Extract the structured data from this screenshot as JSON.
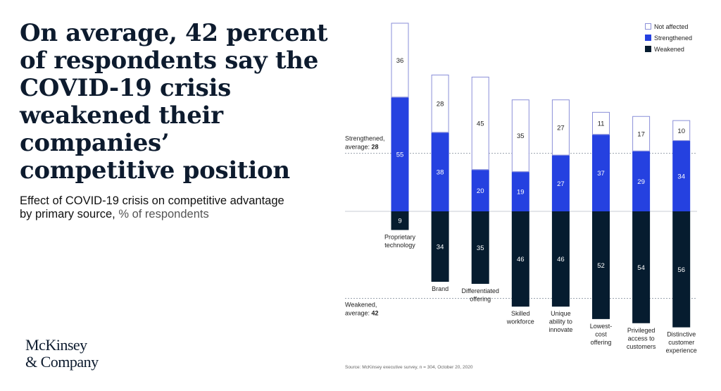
{
  "headline": "On average, 42 percent of respondents say the COVID-19 crisis weakened their companies’ competitive position",
  "subtitle": {
    "main": "Effect of COVID-19 crisis on competitive advantage by primary source,",
    "unit": "% of respondents"
  },
  "brand": {
    "line1": "McKinsey",
    "line2": "& Company"
  },
  "colors": {
    "not_affected_fill": "#ffffff",
    "not_affected_stroke": "#8a8fd8",
    "strengthened": "#2541e0",
    "weakened": "#061c2f"
  },
  "chart_data": {
    "type": "bar",
    "stacked": true,
    "categories": [
      "Proprietary technology",
      "Brand",
      "Differentiated offering",
      "Skilled workforce",
      "Unique ability to innovate",
      "Lowest-cost offering",
      "Privileged access to customers",
      "Distinctive customer experience"
    ],
    "category_lines": [
      [
        "Proprietary",
        "technology"
      ],
      [
        "Brand"
      ],
      [
        "Differentiated",
        "offering"
      ],
      [
        "Skilled",
        "workforce"
      ],
      [
        "Unique",
        "ability to",
        "innovate"
      ],
      [
        "Lowest-",
        "cost",
        "offering"
      ],
      [
        "Privileged",
        "access to",
        "customers"
      ],
      [
        "Distinctive",
        "customer",
        "experience"
      ]
    ],
    "series": [
      {
        "name": "Not affected",
        "values": [
          36,
          28,
          45,
          35,
          27,
          11,
          17,
          10
        ]
      },
      {
        "name": "Strengthened",
        "values": [
          55,
          38,
          20,
          19,
          27,
          37,
          29,
          34
        ]
      },
      {
        "name": "Weakened",
        "values": [
          9,
          34,
          35,
          46,
          46,
          52,
          54,
          56
        ]
      }
    ],
    "legend": [
      "Not affected",
      "Strengthened",
      "Weakened"
    ],
    "legend_position": "top-right",
    "averages": {
      "strengthened": {
        "label": "Strengthened,",
        "label2": "average:",
        "value": 28
      },
      "weakened": {
        "label": "Weakened,",
        "label2": "average:",
        "value": 42
      }
    },
    "source": "Source: McKinsey executive survey, n = 304, October 20, 2020"
  }
}
